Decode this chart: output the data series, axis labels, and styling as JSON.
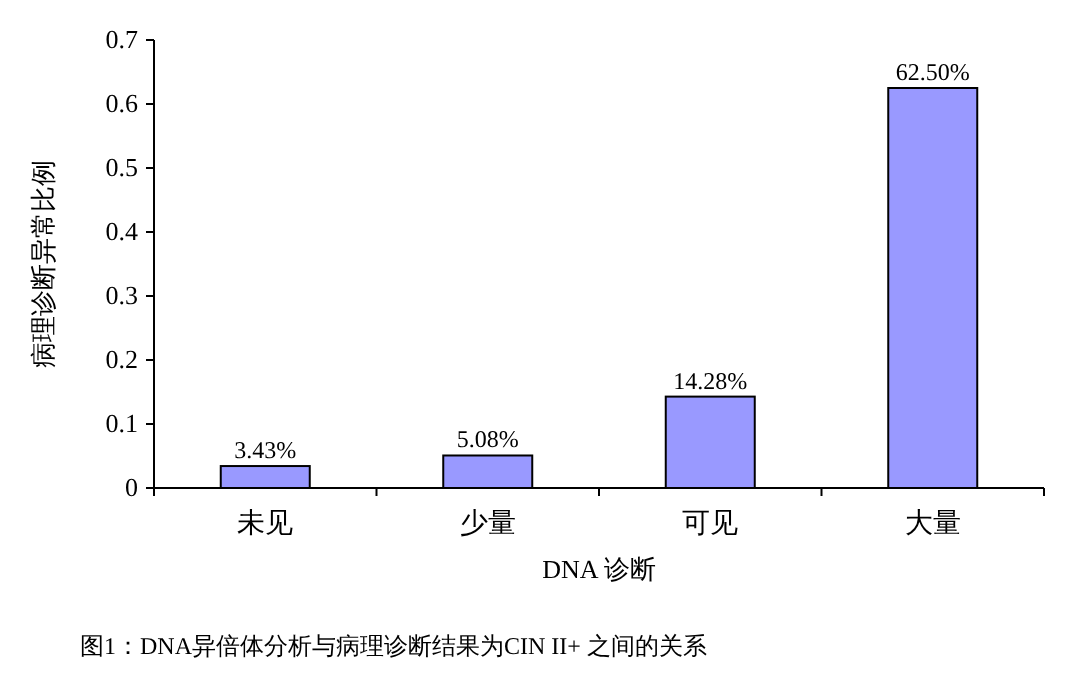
{
  "chart_data": {
    "type": "bar",
    "categories": [
      "未见",
      "少量",
      "可见",
      "大量"
    ],
    "values": [
      0.0343,
      0.0508,
      0.1428,
      0.625
    ],
    "value_labels": [
      "3.43%",
      "5.08%",
      "14.28%",
      "62.50%"
    ],
    "color": "#9999ff",
    "xlabel": "DNA 诊断",
    "ylabel": "病理诊断异常比例",
    "ylim": [
      0,
      0.7
    ],
    "yticks": [
      0,
      0.1,
      0.2,
      0.3,
      0.4,
      0.5,
      0.6,
      0.7
    ],
    "annotations": [
      "图1：DNA异倍体分析与病理诊断结果为CIN II+ 之间的关系"
    ]
  }
}
